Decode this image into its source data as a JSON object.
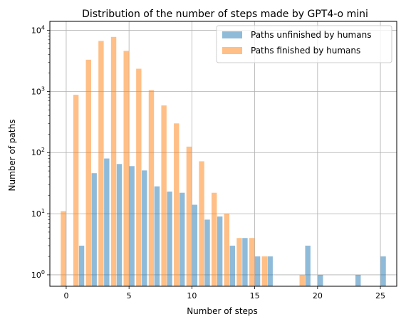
{
  "chart_data": {
    "type": "bar",
    "title": "Distribution of the number of steps made by GPT4-o mini",
    "xlabel": "Number of steps",
    "ylabel": "Number of paths",
    "xlim": [
      -1.3,
      26.3
    ],
    "ylim": [
      0.65,
      14000
    ],
    "yscale": "log",
    "grid": true,
    "legend_position": "top-right",
    "x_ticks": [
      0,
      5,
      10,
      15,
      20,
      25
    ],
    "x_tick_labels": [
      "0",
      "5",
      "10",
      "15",
      "20",
      "25"
    ],
    "y_ticks": [
      1,
      10,
      100,
      1000,
      10000
    ],
    "y_tick_labels": [
      "10^0",
      "10^1",
      "10^2",
      "10^3",
      "10^4"
    ],
    "series": [
      {
        "name": "Paths unfinished by humans",
        "color": "#1f77b4",
        "opacity": 0.5,
        "points": [
          {
            "x": 1,
            "y": 3
          },
          {
            "x": 2,
            "y": 46
          },
          {
            "x": 3,
            "y": 80
          },
          {
            "x": 4,
            "y": 65
          },
          {
            "x": 5,
            "y": 60
          },
          {
            "x": 6,
            "y": 51
          },
          {
            "x": 7,
            "y": 28
          },
          {
            "x": 8,
            "y": 23
          },
          {
            "x": 9,
            "y": 22
          },
          {
            "x": 10,
            "y": 14
          },
          {
            "x": 11,
            "y": 8
          },
          {
            "x": 12,
            "y": 9
          },
          {
            "x": 13,
            "y": 3
          },
          {
            "x": 14,
            "y": 4
          },
          {
            "x": 15,
            "y": 2
          },
          {
            "x": 16,
            "y": 2
          },
          {
            "x": 19,
            "y": 3
          },
          {
            "x": 20,
            "y": 1
          },
          {
            "x": 23,
            "y": 1
          },
          {
            "x": 25,
            "y": 2
          }
        ]
      },
      {
        "name": "Paths finished by humans",
        "color": "#ff7f0e",
        "opacity": 0.5,
        "points": [
          {
            "x": 0,
            "y": 11
          },
          {
            "x": 1,
            "y": 880
          },
          {
            "x": 2,
            "y": 3300
          },
          {
            "x": 3,
            "y": 6700
          },
          {
            "x": 4,
            "y": 7800
          },
          {
            "x": 5,
            "y": 4600
          },
          {
            "x": 6,
            "y": 2350
          },
          {
            "x": 7,
            "y": 1050
          },
          {
            "x": 8,
            "y": 590
          },
          {
            "x": 9,
            "y": 300
          },
          {
            "x": 10,
            "y": 125
          },
          {
            "x": 11,
            "y": 72
          },
          {
            "x": 12,
            "y": 22
          },
          {
            "x": 13,
            "y": 10
          },
          {
            "x": 14,
            "y": 4
          },
          {
            "x": 15,
            "y": 4
          },
          {
            "x": 16,
            "y": 2
          },
          {
            "x": 19,
            "y": 1
          }
        ]
      }
    ]
  }
}
